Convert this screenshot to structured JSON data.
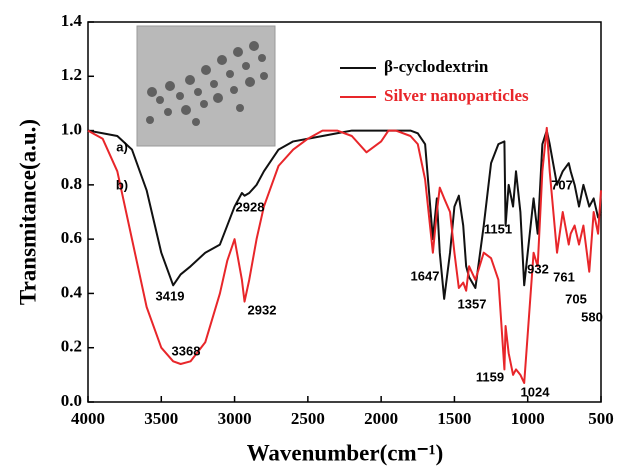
{
  "chart_data": {
    "type": "line",
    "xlabel": "Wavenumber(cm⁻¹)",
    "ylabel": "Transmitance(a.u.)",
    "xlim": [
      4000,
      500
    ],
    "ylim": [
      0,
      1.4
    ],
    "xticks": [
      4000,
      3500,
      3000,
      2500,
      2000,
      1500,
      1000,
      500
    ],
    "yticks": [
      {
        "value": 0,
        "label": "0.0"
      },
      {
        "value": 0.2,
        "label": "0.2"
      },
      {
        "value": 0.4,
        "label": "0.4"
      },
      {
        "value": 0.6,
        "label": "0.6"
      },
      {
        "value": 0.8,
        "label": "0.8"
      },
      {
        "value": 1.0,
        "label": "1.0"
      },
      {
        "value": 1.2,
        "label": "1.2"
      },
      {
        "value": 1.4,
        "label": "1.4"
      }
    ],
    "legend": "upper right",
    "x": [
      4000,
      3900,
      3800,
      3700,
      3600,
      3500,
      3419,
      3368,
      3300,
      3200,
      3100,
      3050,
      3000,
      2950,
      2932,
      2900,
      2850,
      2800,
      2700,
      2600,
      2500,
      2400,
      2300,
      2200,
      2100,
      2000,
      1950,
      1900,
      1800,
      1750,
      1700,
      1647,
      1620,
      1600,
      1570,
      1530,
      1500,
      1470,
      1440,
      1420,
      1400,
      1357,
      1300,
      1250,
      1200,
      1159,
      1151,
      1130,
      1100,
      1080,
      1050,
      1024,
      1000,
      960,
      932,
      900,
      870,
      850,
      800,
      761,
      720,
      707,
      680,
      650,
      620,
      580,
      550,
      520,
      500
    ],
    "series": [
      {
        "name": "β-cyclodextrin",
        "color": "#111111",
        "values": [
          1.0,
          0.99,
          0.98,
          0.93,
          0.78,
          0.55,
          0.43,
          0.47,
          0.5,
          0.55,
          0.58,
          0.65,
          0.72,
          0.77,
          0.76,
          0.77,
          0.8,
          0.85,
          0.93,
          0.96,
          0.97,
          0.98,
          0.99,
          1.0,
          1.0,
          1.0,
          1.0,
          1.0,
          1.0,
          0.99,
          0.95,
          0.6,
          0.75,
          0.55,
          0.38,
          0.55,
          0.72,
          0.76,
          0.65,
          0.5,
          0.46,
          0.42,
          0.65,
          0.88,
          0.95,
          0.96,
          0.65,
          0.8,
          0.72,
          0.85,
          0.7,
          0.43,
          0.55,
          0.75,
          0.62,
          0.95,
          1.0,
          0.95,
          0.8,
          0.85,
          0.88,
          0.85,
          0.8,
          0.72,
          0.8,
          0.72,
          0.75,
          0.68,
          0.7
        ]
      },
      {
        "name": "Silver nanoparticles",
        "color": "#e8262a",
        "values": [
          1.0,
          0.97,
          0.85,
          0.6,
          0.35,
          0.2,
          0.15,
          0.14,
          0.15,
          0.22,
          0.4,
          0.52,
          0.6,
          0.45,
          0.37,
          0.45,
          0.6,
          0.72,
          0.87,
          0.93,
          0.97,
          1.0,
          1.0,
          0.98,
          0.92,
          0.96,
          1.0,
          1.0,
          0.98,
          0.95,
          0.82,
          0.55,
          0.7,
          0.79,
          0.75,
          0.7,
          0.55,
          0.42,
          0.44,
          0.41,
          0.5,
          0.45,
          0.55,
          0.53,
          0.45,
          0.12,
          0.28,
          0.18,
          0.1,
          0.12,
          0.1,
          0.07,
          0.25,
          0.55,
          0.5,
          0.85,
          1.01,
          0.85,
          0.55,
          0.7,
          0.58,
          0.62,
          0.65,
          0.58,
          0.65,
          0.48,
          0.7,
          0.62,
          0.78
        ]
      }
    ],
    "annotations": [
      "a)",
      "b)",
      "3419",
      "3368",
      "2928",
      "2932",
      "1647",
      "1357",
      "1151",
      "1159",
      "1024",
      "932",
      "761",
      "705",
      "707",
      "580"
    ]
  }
}
